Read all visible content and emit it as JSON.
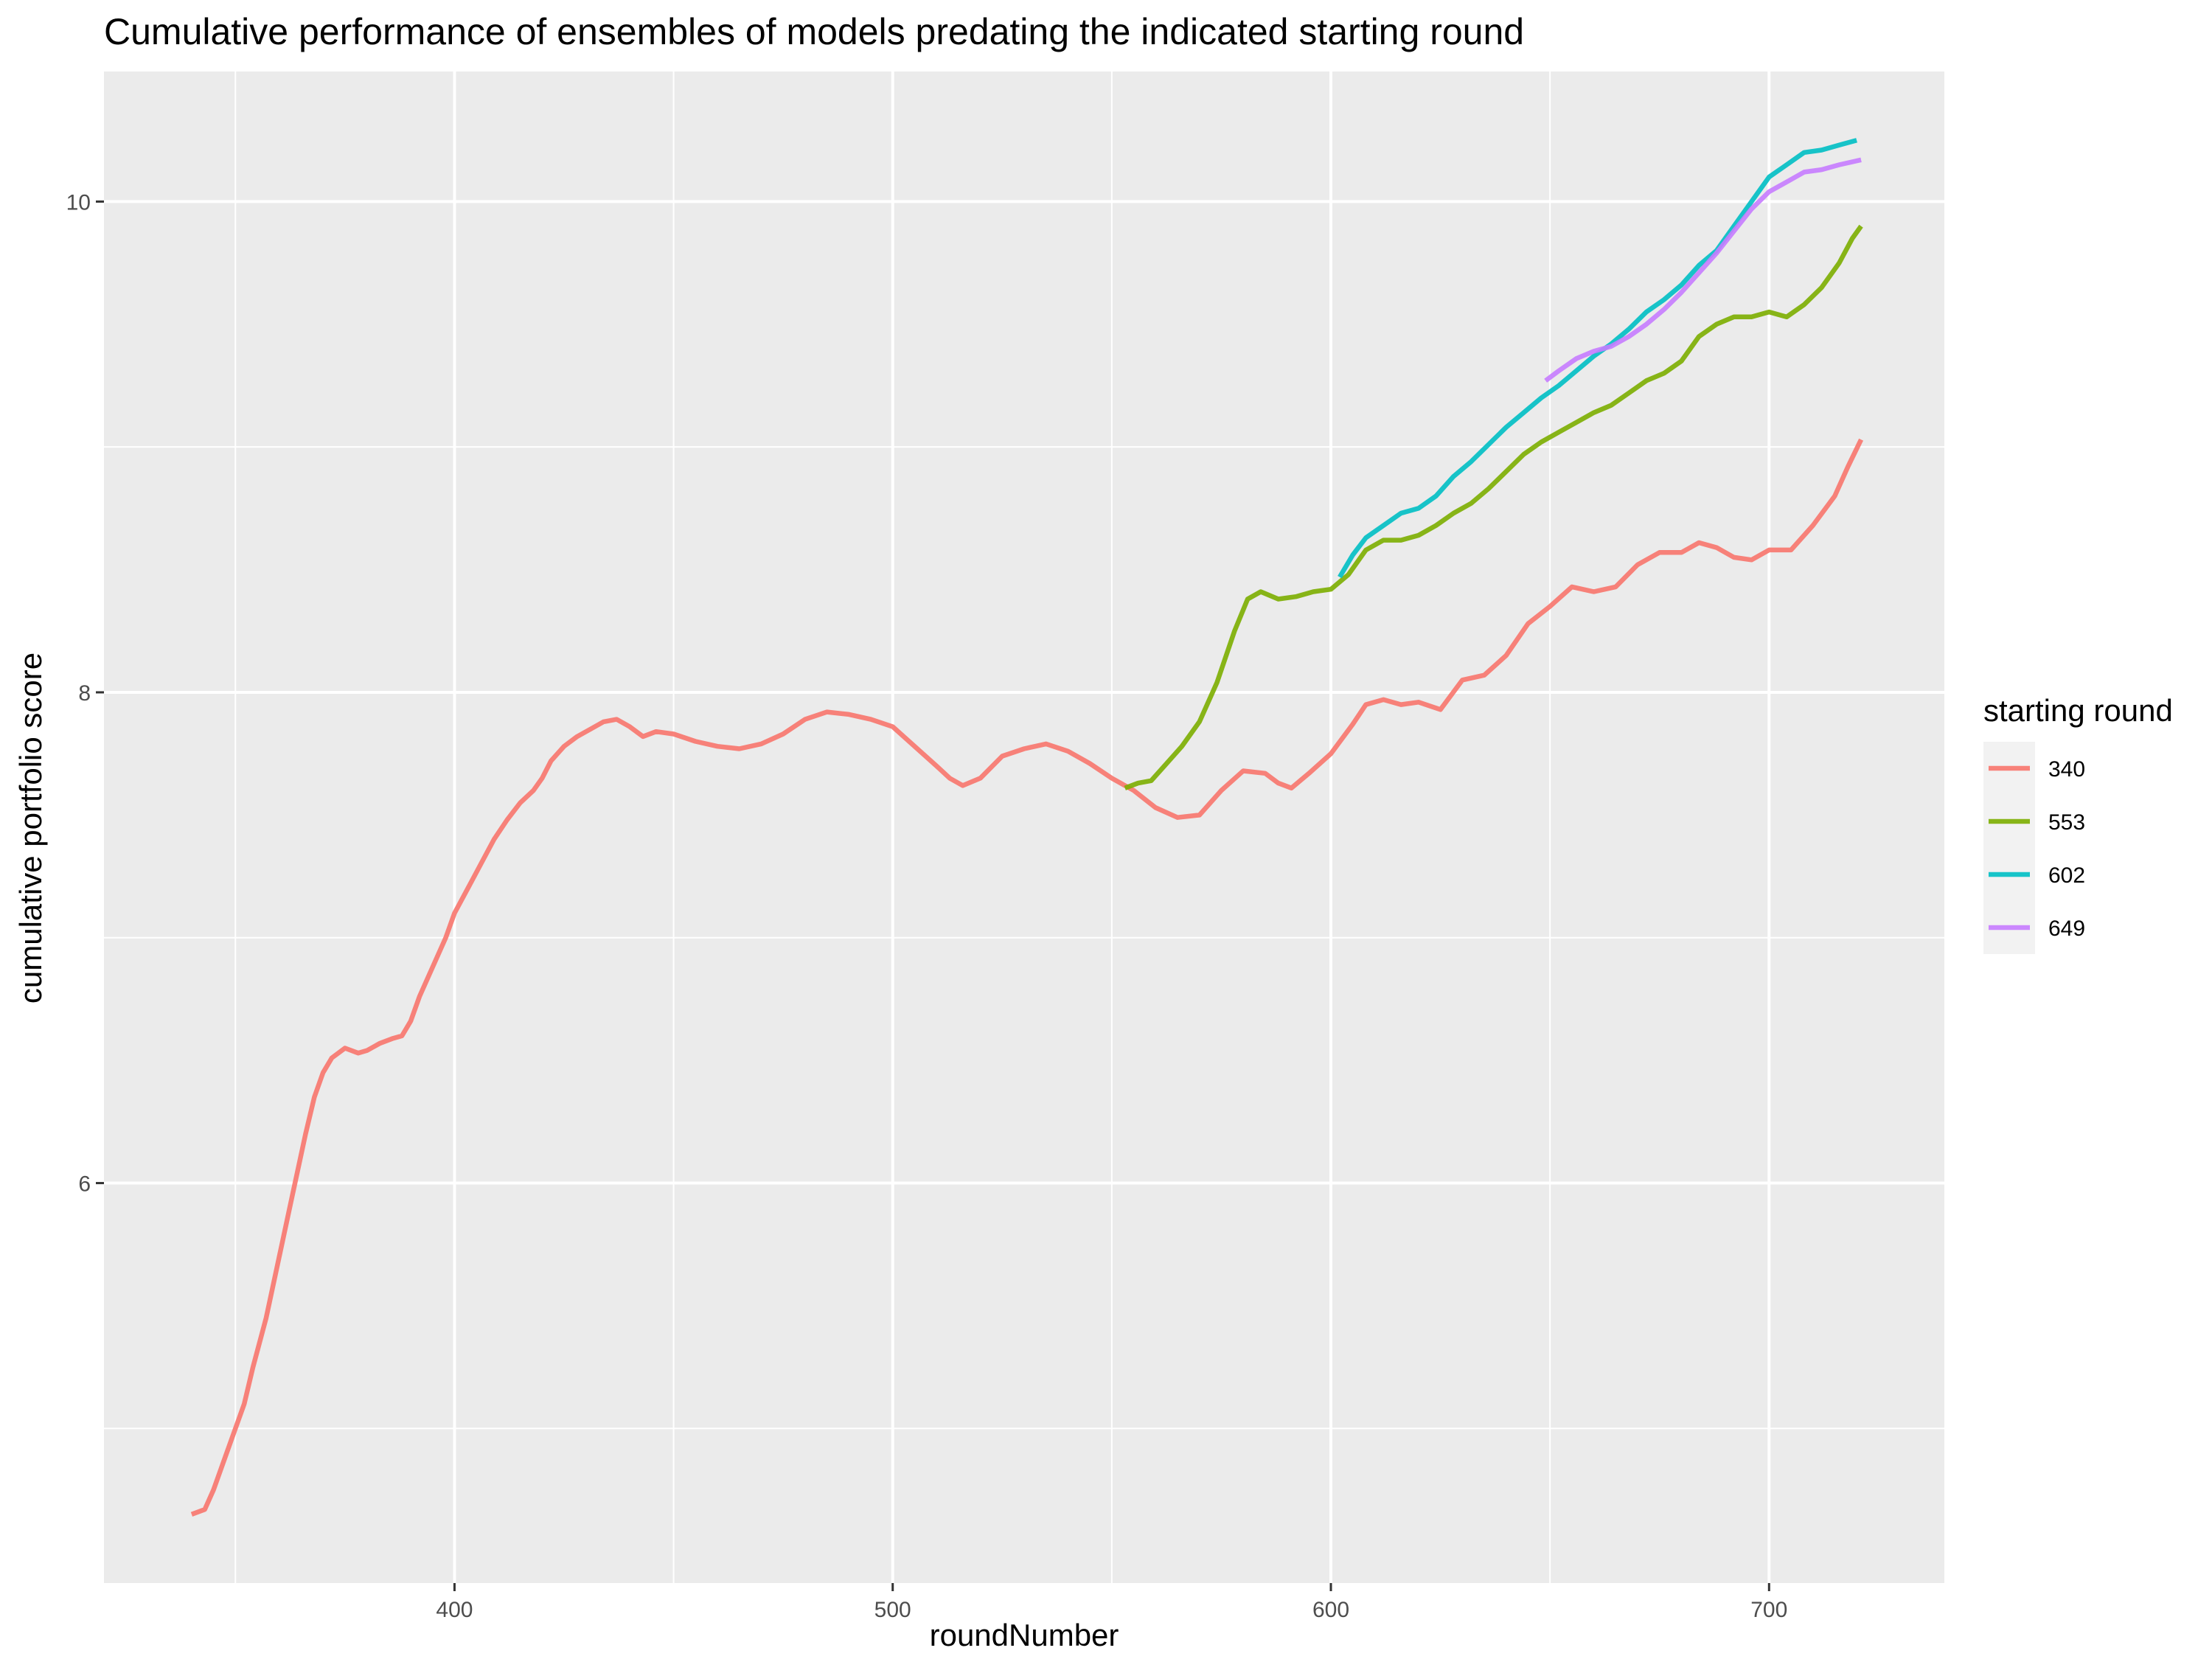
{
  "chart_data": {
    "type": "line",
    "title": "Cumulative performance of ensembles of models predating the indicated starting round",
    "xlabel": "roundNumber",
    "ylabel": "cumulative portfolio score",
    "xlim": [
      320,
      740
    ],
    "ylim": [
      4.37,
      10.53
    ],
    "x_ticks": [
      400,
      500,
      600,
      700
    ],
    "x_tick_labels": [
      "400",
      "500",
      "600",
      "700"
    ],
    "y_ticks": [
      6,
      8,
      10
    ],
    "y_tick_labels": [
      "6",
      "8",
      "10"
    ],
    "grid": true,
    "legend": {
      "title": "starting round",
      "position": "right"
    },
    "series": [
      {
        "name": "340",
        "color": "#F8766D",
        "points": [
          [
            340,
            4.65
          ],
          [
            343,
            4.67
          ],
          [
            345,
            4.75
          ],
          [
            348,
            4.9
          ],
          [
            350,
            5.0
          ],
          [
            352,
            5.1
          ],
          [
            354,
            5.25
          ],
          [
            357,
            5.45
          ],
          [
            360,
            5.7
          ],
          [
            363,
            5.95
          ],
          [
            366,
            6.2
          ],
          [
            368,
            6.35
          ],
          [
            370,
            6.45
          ],
          [
            372,
            6.51
          ],
          [
            375,
            6.55
          ],
          [
            378,
            6.53
          ],
          [
            380,
            6.54
          ],
          [
            383,
            6.57
          ],
          [
            386,
            6.59
          ],
          [
            388,
            6.6
          ],
          [
            390,
            6.66
          ],
          [
            392,
            6.76
          ],
          [
            395,
            6.88
          ],
          [
            398,
            7.0
          ],
          [
            400,
            7.1
          ],
          [
            403,
            7.2
          ],
          [
            406,
            7.3
          ],
          [
            409,
            7.4
          ],
          [
            412,
            7.48
          ],
          [
            415,
            7.55
          ],
          [
            418,
            7.6
          ],
          [
            420,
            7.65
          ],
          [
            422,
            7.72
          ],
          [
            425,
            7.78
          ],
          [
            428,
            7.82
          ],
          [
            431,
            7.85
          ],
          [
            434,
            7.88
          ],
          [
            437,
            7.89
          ],
          [
            440,
            7.86
          ],
          [
            443,
            7.82
          ],
          [
            446,
            7.84
          ],
          [
            450,
            7.83
          ],
          [
            455,
            7.8
          ],
          [
            460,
            7.78
          ],
          [
            465,
            7.77
          ],
          [
            470,
            7.79
          ],
          [
            475,
            7.83
          ],
          [
            480,
            7.89
          ],
          [
            485,
            7.92
          ],
          [
            490,
            7.91
          ],
          [
            495,
            7.89
          ],
          [
            500,
            7.86
          ],
          [
            505,
            7.78
          ],
          [
            510,
            7.7
          ],
          [
            513,
            7.65
          ],
          [
            516,
            7.62
          ],
          [
            520,
            7.65
          ],
          [
            525,
            7.74
          ],
          [
            530,
            7.77
          ],
          [
            535,
            7.79
          ],
          [
            540,
            7.76
          ],
          [
            545,
            7.71
          ],
          [
            550,
            7.65
          ],
          [
            555,
            7.6
          ],
          [
            560,
            7.53
          ],
          [
            565,
            7.49
          ],
          [
            570,
            7.5
          ],
          [
            575,
            7.6
          ],
          [
            580,
            7.68
          ],
          [
            585,
            7.67
          ],
          [
            588,
            7.63
          ],
          [
            591,
            7.61
          ],
          [
            595,
            7.67
          ],
          [
            600,
            7.75
          ],
          [
            605,
            7.87
          ],
          [
            608,
            7.95
          ],
          [
            612,
            7.97
          ],
          [
            616,
            7.95
          ],
          [
            620,
            7.96
          ],
          [
            625,
            7.93
          ],
          [
            630,
            8.05
          ],
          [
            635,
            8.07
          ],
          [
            640,
            8.15
          ],
          [
            645,
            8.28
          ],
          [
            650,
            8.35
          ],
          [
            655,
            8.43
          ],
          [
            660,
            8.41
          ],
          [
            665,
            8.43
          ],
          [
            670,
            8.52
          ],
          [
            675,
            8.57
          ],
          [
            680,
            8.57
          ],
          [
            684,
            8.61
          ],
          [
            688,
            8.59
          ],
          [
            692,
            8.55
          ],
          [
            696,
            8.54
          ],
          [
            700,
            8.58
          ],
          [
            705,
            8.58
          ],
          [
            710,
            8.68
          ],
          [
            715,
            8.8
          ],
          [
            718,
            8.92
          ],
          [
            721,
            9.03
          ]
        ]
      },
      {
        "name": "553",
        "color": "#7CAE00",
        "points": [
          [
            553,
            7.61
          ],
          [
            556,
            7.63
          ],
          [
            559,
            7.64
          ],
          [
            562,
            7.7
          ],
          [
            566,
            7.78
          ],
          [
            570,
            7.88
          ],
          [
            574,
            8.04
          ],
          [
            578,
            8.25
          ],
          [
            581,
            8.38
          ],
          [
            584,
            8.41
          ],
          [
            588,
            8.38
          ],
          [
            592,
            8.39
          ],
          [
            596,
            8.41
          ],
          [
            600,
            8.42
          ],
          [
            604,
            8.48
          ],
          [
            608,
            8.58
          ],
          [
            612,
            8.62
          ],
          [
            616,
            8.62
          ],
          [
            620,
            8.64
          ],
          [
            624,
            8.68
          ],
          [
            628,
            8.73
          ],
          [
            632,
            8.77
          ],
          [
            636,
            8.83
          ],
          [
            640,
            8.9
          ],
          [
            644,
            8.97
          ],
          [
            648,
            9.02
          ],
          [
            652,
            9.06
          ],
          [
            656,
            9.1
          ],
          [
            660,
            9.14
          ],
          [
            664,
            9.17
          ],
          [
            668,
            9.22
          ],
          [
            672,
            9.27
          ],
          [
            676,
            9.3
          ],
          [
            680,
            9.35
          ],
          [
            684,
            9.45
          ],
          [
            688,
            9.5
          ],
          [
            692,
            9.53
          ],
          [
            696,
            9.53
          ],
          [
            700,
            9.55
          ],
          [
            704,
            9.53
          ],
          [
            708,
            9.58
          ],
          [
            712,
            9.65
          ],
          [
            716,
            9.75
          ],
          [
            719,
            9.85
          ],
          [
            721,
            9.9
          ]
        ]
      },
      {
        "name": "602",
        "color": "#00BFC4",
        "points": [
          [
            602,
            8.47
          ],
          [
            605,
            8.56
          ],
          [
            608,
            8.63
          ],
          [
            612,
            8.68
          ],
          [
            616,
            8.73
          ],
          [
            620,
            8.75
          ],
          [
            624,
            8.8
          ],
          [
            628,
            8.88
          ],
          [
            632,
            8.94
          ],
          [
            636,
            9.01
          ],
          [
            640,
            9.08
          ],
          [
            644,
            9.14
          ],
          [
            648,
            9.2
          ],
          [
            652,
            9.25
          ],
          [
            656,
            9.31
          ],
          [
            660,
            9.37
          ],
          [
            664,
            9.42
          ],
          [
            668,
            9.48
          ],
          [
            672,
            9.55
          ],
          [
            676,
            9.6
          ],
          [
            680,
            9.66
          ],
          [
            684,
            9.74
          ],
          [
            688,
            9.8
          ],
          [
            692,
            9.9
          ],
          [
            696,
            10.0
          ],
          [
            700,
            10.1
          ],
          [
            704,
            10.15
          ],
          [
            708,
            10.2
          ],
          [
            712,
            10.21
          ],
          [
            716,
            10.23
          ],
          [
            720,
            10.25
          ]
        ]
      },
      {
        "name": "649",
        "color": "#C77CFF",
        "points": [
          [
            649,
            9.27
          ],
          [
            652,
            9.31
          ],
          [
            656,
            9.36
          ],
          [
            660,
            9.39
          ],
          [
            664,
            9.41
          ],
          [
            668,
            9.45
          ],
          [
            672,
            9.5
          ],
          [
            676,
            9.56
          ],
          [
            680,
            9.63
          ],
          [
            684,
            9.71
          ],
          [
            688,
            9.79
          ],
          [
            692,
            9.88
          ],
          [
            696,
            9.97
          ],
          [
            700,
            10.04
          ],
          [
            704,
            10.08
          ],
          [
            708,
            10.12
          ],
          [
            712,
            10.13
          ],
          [
            716,
            10.15
          ],
          [
            721,
            10.17
          ]
        ]
      }
    ]
  }
}
